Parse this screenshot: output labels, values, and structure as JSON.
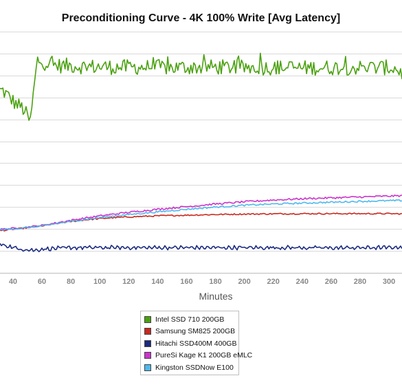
{
  "chart_data": {
    "type": "line",
    "title": "Preconditioning Curve - 4K 100% Write [Avg Latency]",
    "xlabel": "Minutes",
    "ylabel": "",
    "xlim": [
      31,
      309
    ],
    "ylim": [
      0,
      11
    ],
    "x_ticks": [
      40,
      60,
      80,
      100,
      120,
      140,
      160,
      180,
      200,
      220,
      240,
      260,
      280,
      300
    ],
    "y_gridlines": [
      1,
      2,
      3,
      4,
      5,
      6,
      7,
      8,
      9,
      10,
      11
    ],
    "grid": true,
    "legend_position": "bottom-center",
    "series": [
      {
        "name": "Intel SSD 710 200GB",
        "color": "#4aa10f",
        "x": [
          31,
          33,
          36,
          39,
          42,
          45,
          48,
          50,
          52,
          53,
          55,
          57,
          60,
          65,
          70,
          80,
          90,
          100,
          110,
          120,
          130,
          140,
          150,
          160,
          170,
          180,
          190,
          200,
          210,
          220,
          230,
          240,
          250,
          260,
          270,
          280,
          290,
          300,
          305,
          309
        ],
        "values": [
          8.3,
          8.3,
          8.1,
          7.9,
          7.7,
          7.6,
          7.4,
          7.1,
          6.9,
          7.5,
          8.7,
          9.7,
          9.6,
          9.55,
          9.45,
          9.45,
          9.4,
          9.4,
          9.38,
          9.38,
          9.38,
          9.38,
          9.35,
          9.38,
          9.38,
          9.38,
          9.38,
          9.36,
          9.36,
          9.36,
          9.36,
          9.34,
          9.36,
          9.36,
          9.36,
          9.36,
          9.36,
          9.36,
          9.3,
          9.1
        ],
        "noise": 0.35
      },
      {
        "name": "Samsung SM825 200GB",
        "color": "#c8281e",
        "x": [
          31,
          45,
          60,
          75,
          90,
          105,
          120,
          140,
          160,
          180,
          200,
          220,
          240,
          260,
          280,
          300,
          309
        ],
        "values": [
          1.92,
          2.02,
          2.14,
          2.3,
          2.42,
          2.5,
          2.55,
          2.6,
          2.63,
          2.66,
          2.68,
          2.69,
          2.7,
          2.7,
          2.7,
          2.7,
          2.69
        ],
        "noise": 0.03
      },
      {
        "name": "Hitachi SSD400M 400GB",
        "color": "#1a2a80",
        "x": [
          31,
          35,
          42,
          50,
          55,
          60,
          80,
          100,
          140,
          180,
          220,
          260,
          300,
          309
        ],
        "values": [
          1.3,
          1.25,
          1.12,
          1.05,
          1.03,
          1.08,
          1.15,
          1.15,
          1.15,
          1.15,
          1.15,
          1.14,
          1.15,
          1.18
        ],
        "noise": 0.06
      },
      {
        "name": "PureSi Kage K1 200GB eMLC",
        "color": "#cc33cc",
        "x": [
          31,
          45,
          60,
          75,
          90,
          105,
          120,
          140,
          160,
          180,
          200,
          220,
          240,
          260,
          280,
          300,
          309
        ],
        "values": [
          1.98,
          2.05,
          2.16,
          2.34,
          2.5,
          2.64,
          2.76,
          2.9,
          3.02,
          3.14,
          3.24,
          3.32,
          3.38,
          3.42,
          3.46,
          3.5,
          3.52
        ],
        "noise": 0.04
      },
      {
        "name": "Kingston SSDNow E100",
        "color": "#4db8ee",
        "x": [
          31,
          45,
          60,
          75,
          90,
          105,
          120,
          140,
          160,
          180,
          200,
          220,
          240,
          260,
          280,
          300,
          309
        ],
        "values": [
          1.96,
          2.03,
          2.14,
          2.3,
          2.44,
          2.56,
          2.66,
          2.78,
          2.9,
          3.0,
          3.08,
          3.14,
          3.18,
          3.22,
          3.26,
          3.29,
          3.3
        ],
        "noise": 0.035
      }
    ]
  }
}
